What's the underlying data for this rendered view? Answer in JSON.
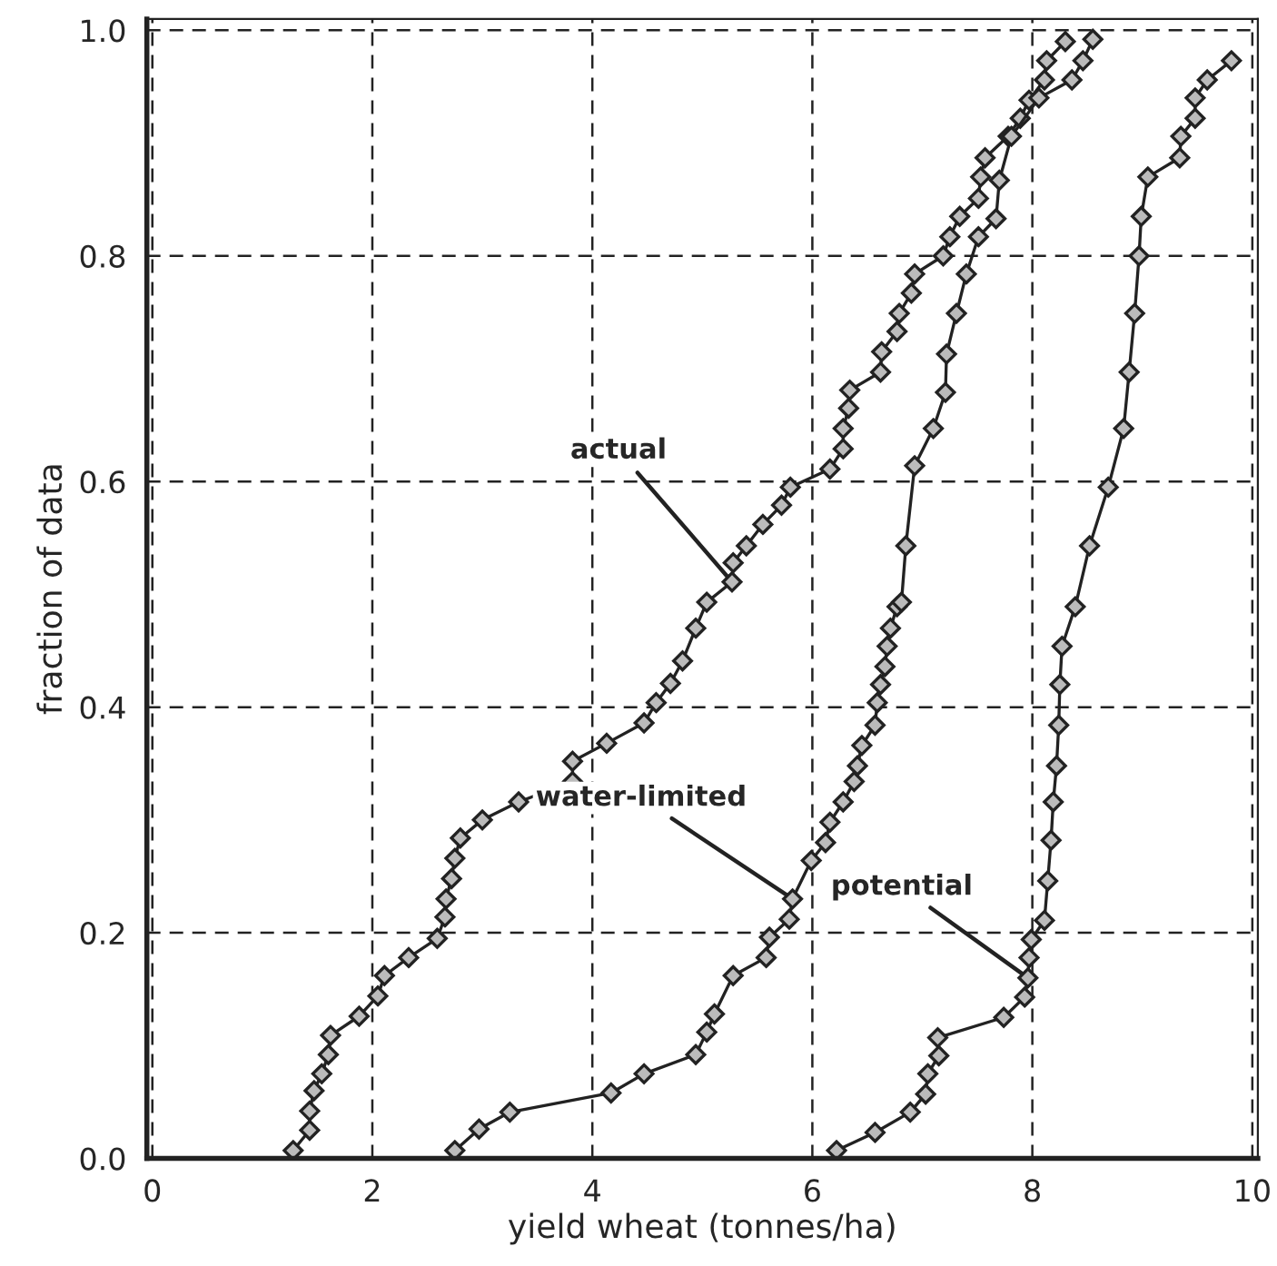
{
  "chart_data": {
    "type": "line",
    "xlabel": "yield wheat (tonnes/ha)",
    "ylabel": "fraction of data",
    "xlim": [
      -0.05,
      10.05
    ],
    "ylim": [
      0,
      1.01
    ],
    "xticks": [
      0,
      2,
      4,
      6,
      8,
      10
    ],
    "yticks": [
      {
        "value": 0,
        "label": "0.0"
      },
      0.2,
      0.4,
      0.6,
      0.8,
      {
        "value": 1,
        "label": "1.0"
      }
    ],
    "grid": true,
    "marker": "diamond",
    "line_style": "solid",
    "legend": false,
    "series": [
      {
        "name": "actual",
        "color": "#222222",
        "x": [
          1.28,
          1.43,
          1.43,
          1.47,
          1.54,
          1.6,
          1.62,
          1.88,
          2.05,
          2.11,
          2.33,
          2.59,
          2.66,
          2.67,
          2.72,
          2.75,
          2.8,
          3.0,
          3.33,
          3.82,
          3.82,
          4.13,
          4.47,
          4.58,
          4.71,
          4.82,
          4.94,
          5.04,
          5.27,
          5.28,
          5.4,
          5.55,
          5.72,
          5.8,
          6.16,
          6.28,
          6.28,
          6.33,
          6.34,
          6.62,
          6.63,
          6.77,
          6.79,
          6.9,
          6.93,
          7.19,
          7.25,
          7.34,
          7.51,
          7.53,
          7.57,
          7.78,
          7.89,
          7.97,
          8.11,
          8.13,
          8.3
        ],
        "values": [
          0.007,
          0.025,
          0.042,
          0.06,
          0.075,
          0.092,
          0.109,
          0.126,
          0.144,
          0.162,
          0.178,
          0.195,
          0.214,
          0.23,
          0.248,
          0.266,
          0.284,
          0.3,
          0.316,
          0.334,
          0.352,
          0.368,
          0.386,
          0.404,
          0.421,
          0.441,
          0.47,
          0.493,
          0.511,
          0.528,
          0.543,
          0.562,
          0.579,
          0.595,
          0.611,
          0.629,
          0.647,
          0.665,
          0.681,
          0.697,
          0.715,
          0.733,
          0.749,
          0.767,
          0.784,
          0.8,
          0.817,
          0.835,
          0.851,
          0.87,
          0.887,
          0.906,
          0.922,
          0.938,
          0.956,
          0.973,
          0.99
        ]
      },
      {
        "name": "water-limited",
        "color": "#222222",
        "x": [
          2.75,
          2.97,
          3.25,
          4.17,
          4.47,
          4.94,
          5.04,
          5.11,
          5.28,
          5.58,
          5.61,
          5.79,
          5.82,
          5.99,
          6.12,
          6.16,
          6.28,
          6.38,
          6.41,
          6.45,
          6.57,
          6.59,
          6.62,
          6.66,
          6.68,
          6.71,
          6.77,
          6.81,
          6.85,
          6.93,
          7.1,
          7.21,
          7.22,
          7.31,
          7.4,
          7.51,
          7.67,
          7.7,
          7.81,
          8.06,
          8.36,
          8.46,
          8.55
        ],
        "values": [
          0.007,
          0.026,
          0.041,
          0.058,
          0.075,
          0.092,
          0.112,
          0.128,
          0.162,
          0.178,
          0.196,
          0.212,
          0.23,
          0.264,
          0.28,
          0.298,
          0.316,
          0.334,
          0.348,
          0.366,
          0.384,
          0.404,
          0.42,
          0.436,
          0.454,
          0.47,
          0.489,
          0.493,
          0.543,
          0.614,
          0.647,
          0.679,
          0.713,
          0.749,
          0.784,
          0.817,
          0.833,
          0.867,
          0.906,
          0.94,
          0.956,
          0.973,
          0.992
        ]
      },
      {
        "name": "potential",
        "color": "#222222",
        "x": [
          6.22,
          6.57,
          6.89,
          7.03,
          7.05,
          7.15,
          7.14,
          7.74,
          7.93,
          7.96,
          7.97,
          7.99,
          8.11,
          8.14,
          8.17,
          8.19,
          8.22,
          8.24,
          8.25,
          8.27,
          8.39,
          8.52,
          8.69,
          8.83,
          8.88,
          8.93,
          8.97,
          8.99,
          9.05,
          9.34,
          9.35,
          9.48,
          9.48,
          9.59,
          9.81
        ],
        "values": [
          0.007,
          0.023,
          0.041,
          0.057,
          0.075,
          0.091,
          0.107,
          0.125,
          0.143,
          0.16,
          0.178,
          0.194,
          0.211,
          0.246,
          0.282,
          0.316,
          0.348,
          0.384,
          0.42,
          0.454,
          0.489,
          0.543,
          0.595,
          0.647,
          0.697,
          0.749,
          0.8,
          0.835,
          0.87,
          0.887,
          0.906,
          0.922,
          0.94,
          0.956,
          0.973
        ]
      }
    ]
  }
}
